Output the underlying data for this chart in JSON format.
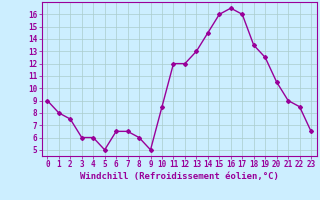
{
  "x": [
    0,
    1,
    2,
    3,
    4,
    5,
    6,
    7,
    8,
    9,
    10,
    11,
    12,
    13,
    14,
    15,
    16,
    17,
    18,
    19,
    20,
    21,
    22,
    23
  ],
  "y": [
    9,
    8,
    7.5,
    6,
    6,
    5,
    6.5,
    6.5,
    6,
    5,
    8.5,
    12,
    12,
    13,
    14.5,
    16,
    16.5,
    16,
    13.5,
    12.5,
    10.5,
    9,
    8.5,
    6.5
  ],
  "line_color": "#990099",
  "marker": "D",
  "marker_size": 2.0,
  "linewidth": 1.0,
  "bg_color": "#cceeff",
  "grid_color": "#aacccc",
  "xlabel": "Windchill (Refroidissement éolien,°C)",
  "xlabel_color": "#990099",
  "xlabel_fontsize": 6.5,
  "tick_color": "#990099",
  "tick_fontsize": 5.5,
  "ylim": [
    4.5,
    17.0
  ],
  "xlim": [
    -0.5,
    23.5
  ],
  "yticks": [
    5,
    6,
    7,
    8,
    9,
    10,
    11,
    12,
    13,
    14,
    15,
    16
  ],
  "xticks": [
    0,
    1,
    2,
    3,
    4,
    5,
    6,
    7,
    8,
    9,
    10,
    11,
    12,
    13,
    14,
    15,
    16,
    17,
    18,
    19,
    20,
    21,
    22,
    23
  ]
}
